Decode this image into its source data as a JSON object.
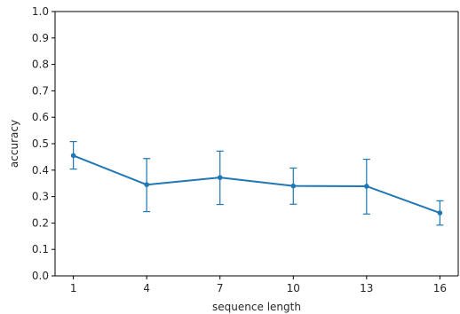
{
  "chart_data": {
    "type": "line",
    "title": "",
    "xlabel": "sequence length",
    "ylabel": "accuracy",
    "x": [
      1,
      4,
      7,
      10,
      13,
      16
    ],
    "xticks": [
      "1",
      "4",
      "7",
      "10",
      "13",
      "16"
    ],
    "yticks": [
      "0.0",
      "0.1",
      "0.2",
      "0.3",
      "0.4",
      "0.5",
      "0.6",
      "0.7",
      "0.8",
      "0.9",
      "1.0"
    ],
    "ylim": [
      0,
      1.0
    ],
    "xlim": [
      0.25,
      16.75
    ],
    "grid": false,
    "legend": "none",
    "series": [
      {
        "values": [
          0.455,
          0.345,
          0.372,
          0.34,
          0.339,
          0.238
        ],
        "err_low": [
          0.404,
          0.243,
          0.27,
          0.271,
          0.234,
          0.192
        ],
        "err_high": [
          0.508,
          0.444,
          0.472,
          0.408,
          0.441,
          0.284
        ],
        "color": "#1f77b4",
        "marker": "circle",
        "error_bars": true
      }
    ]
  }
}
